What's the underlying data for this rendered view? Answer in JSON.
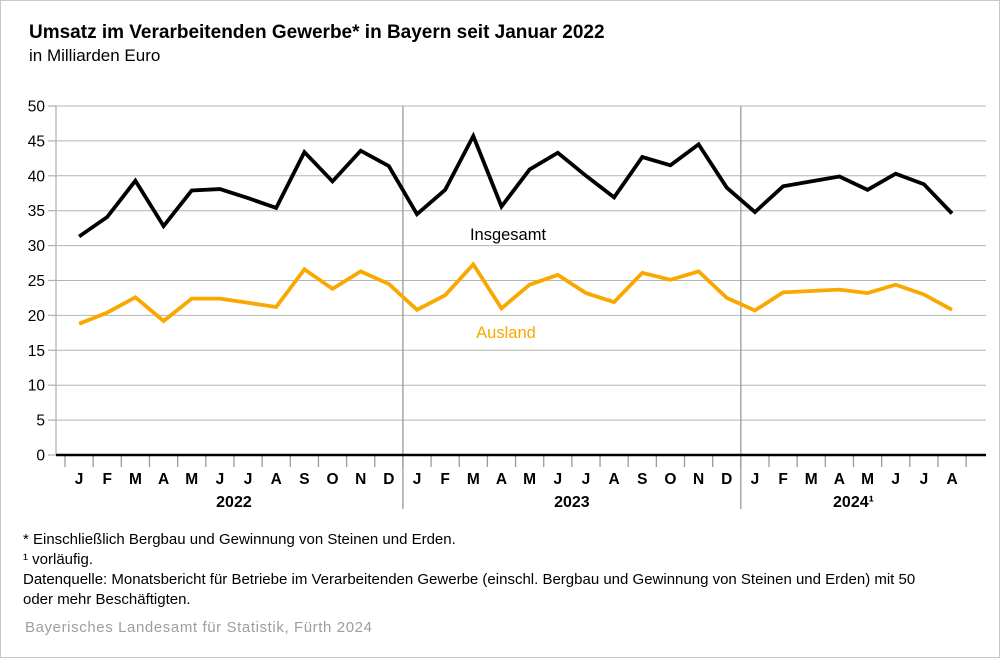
{
  "header": {
    "title": "Umsatz im Verarbeitenden Gewerbe* in Bayern seit Januar 2022",
    "subtitle": "in Milliarden Euro"
  },
  "chart_data": {
    "type": "line",
    "title": "Umsatz im Verarbeitenden Gewerbe in Bayern seit Januar 2022",
    "ylabel": "Milliarden Euro",
    "y_axis": {
      "min": 0,
      "max": 50,
      "step": 5
    },
    "grid": true,
    "legend_position": "inline-labels",
    "x_groups": [
      {
        "year_label": "2022",
        "months": [
          "J",
          "F",
          "M",
          "A",
          "M",
          "J",
          "J",
          "A",
          "S",
          "O",
          "N",
          "D"
        ]
      },
      {
        "year_label": "2023",
        "months": [
          "J",
          "F",
          "M",
          "A",
          "M",
          "J",
          "J",
          "A",
          "S",
          "O",
          "N",
          "D"
        ]
      },
      {
        "year_label": "2024¹",
        "months": [
          "J",
          "F",
          "M",
          "A",
          "M",
          "J",
          "J",
          "A"
        ]
      }
    ],
    "series": [
      {
        "name": "Insgesamt",
        "color": "#000000",
        "values": [
          31.3,
          34.1,
          39.3,
          32.8,
          37.9,
          38.1,
          36.8,
          35.4,
          43.4,
          39.2,
          43.6,
          41.4,
          34.5,
          38.0,
          45.7,
          35.6,
          40.9,
          43.3,
          40.0,
          36.9,
          42.7,
          41.5,
          44.5,
          38.3,
          34.8,
          38.5,
          39.2,
          39.9,
          38.0,
          40.3,
          38.8,
          34.6
        ]
      },
      {
        "name": "Ausland",
        "color": "#F9A800",
        "values": [
          18.8,
          20.4,
          22.6,
          19.2,
          22.4,
          22.4,
          21.8,
          21.2,
          26.6,
          23.8,
          26.3,
          24.5,
          20.8,
          22.9,
          27.3,
          21.0,
          24.4,
          25.8,
          23.2,
          21.9,
          26.1,
          25.1,
          26.3,
          22.5,
          20.7,
          23.3,
          23.5,
          23.7,
          23.2,
          24.4,
          23.0,
          20.8
        ]
      }
    ],
    "colors": {
      "gridline": "#b4b4b4",
      "separator": "#9a9a9a",
      "tick": "#9a9a9a",
      "axis": "#000000"
    }
  },
  "footnotes": {
    "fn1": "* Einschließlich Bergbau und Gewinnung von Steinen und Erden.",
    "fn2": "¹ vorläufig.",
    "source": "Datenquelle: Monatsbericht für Betriebe im Verarbeitenden Gewerbe (einschl. Bergbau und Gewinnung von Steinen und Erden) mit 50 oder mehr Beschäftigten."
  },
  "credit": "Bayerisches Landesamt für Statistik, Fürth 2024"
}
